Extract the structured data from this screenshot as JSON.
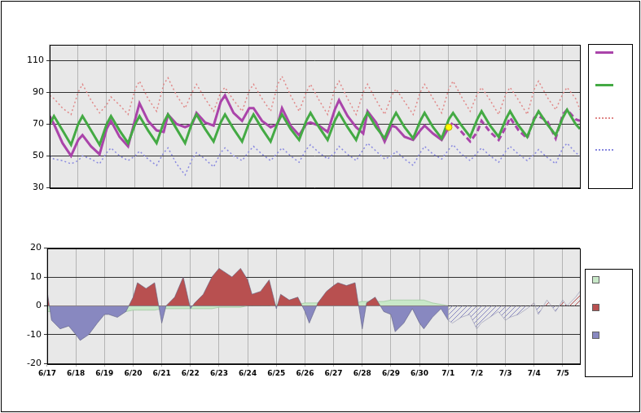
{
  "chart_data": [
    {
      "type": "line",
      "x": [
        0,
        0.15,
        0.45,
        0.75,
        1,
        1.15,
        1.45,
        1.75,
        2,
        2.15,
        2.45,
        2.75,
        3,
        3.15,
        3.45,
        3.75,
        4,
        4.15,
        4.45,
        4.75,
        5,
        5.15,
        5.45,
        5.75,
        6,
        6.15,
        6.45,
        6.75,
        7,
        7.15,
        7.45,
        7.75,
        8,
        8.15,
        8.45,
        8.75,
        9,
        9.15,
        9.45,
        9.75,
        10,
        10.15,
        10.45,
        10.75,
        11,
        11.15,
        11.45,
        11.75,
        12,
        12.15,
        12.45,
        12.75,
        13,
        13.15,
        13.45,
        13.75,
        14,
        14.15,
        14.45,
        14.75,
        15,
        15.15,
        15.45,
        15.75,
        16,
        16.15,
        16.45,
        16.75,
        17,
        17.15,
        17.45,
        17.75,
        18,
        18.15,
        18.45,
        18.6
      ],
      "xlim": [
        0,
        18.6
      ],
      "xticks": [
        {
          "value": 0,
          "label": "6/17"
        },
        {
          "value": 1,
          "label": "6/18"
        },
        {
          "value": 2,
          "label": "6/19"
        },
        {
          "value": 3,
          "label": "6/20"
        },
        {
          "value": 4,
          "label": "6/21"
        },
        {
          "value": 5,
          "label": "6/22"
        },
        {
          "value": 6,
          "label": "6/23"
        },
        {
          "value": 7,
          "label": "6/24"
        },
        {
          "value": 8,
          "label": "6/25"
        },
        {
          "value": 9,
          "label": "6/26"
        },
        {
          "value": 10,
          "label": "6/27"
        },
        {
          "value": 11,
          "label": "6/28"
        },
        {
          "value": 12,
          "label": "6/29"
        },
        {
          "value": 13,
          "label": "6/30"
        },
        {
          "value": 14,
          "label": "7/1"
        },
        {
          "value": 15,
          "label": "7/2"
        },
        {
          "value": 16,
          "label": "7/3"
        },
        {
          "value": 17,
          "label": "7/4"
        },
        {
          "value": 18,
          "label": "7/5"
        }
      ],
      "ylim": [
        30,
        120
      ],
      "yticks": [
        30,
        50,
        70,
        90,
        110
      ],
      "grid": true,
      "legend": "right",
      "tick_labels": "y",
      "series": [
        {
          "color": "#aa44aa",
          "line_style": "solid",
          "values": [
            75,
            70,
            58,
            50,
            60,
            63,
            56,
            51,
            67,
            72,
            62,
            56,
            73,
            83,
            72,
            66,
            65,
            76,
            70,
            68,
            70,
            77,
            71,
            69,
            84,
            88,
            77,
            72,
            80,
            80,
            72,
            68,
            70,
            80,
            69,
            63,
            70,
            71,
            69,
            65,
            79,
            85,
            75,
            68,
            64,
            78,
            71,
            59,
            69,
            68,
            62,
            60,
            66,
            69,
            64,
            60,
            68,
            null,
            null,
            null,
            null,
            null,
            null,
            null,
            null,
            null,
            null,
            null,
            null,
            null,
            null,
            null,
            null,
            null,
            null,
            null
          ]
        },
        {
          "color": "#aa44aa",
          "line_style": "dashed",
          "values": [
            null,
            null,
            null,
            null,
            null,
            null,
            null,
            null,
            null,
            null,
            null,
            null,
            null,
            null,
            null,
            null,
            null,
            null,
            null,
            null,
            null,
            null,
            null,
            null,
            null,
            null,
            null,
            null,
            null,
            null,
            null,
            null,
            null,
            null,
            null,
            null,
            null,
            null,
            null,
            null,
            null,
            null,
            null,
            null,
            null,
            null,
            null,
            null,
            null,
            null,
            null,
            null,
            null,
            null,
            null,
            null,
            68,
            71,
            65,
            59,
            65,
            72,
            65,
            60,
            68,
            74,
            66,
            61,
            74,
            75,
            72,
            61,
            76,
            79,
            73,
            72
          ]
        },
        {
          "color": "#44aa44",
          "line_style": "solid",
          "values": [
            70,
            75,
            66,
            57,
            70,
            75,
            66,
            57,
            70,
            75,
            66,
            58,
            70,
            75,
            66,
            58,
            71,
            76,
            67,
            58,
            71,
            76,
            67,
            59,
            71,
            76,
            67,
            59,
            71,
            76,
            67,
            59,
            71,
            76,
            67,
            60,
            72,
            77,
            68,
            60,
            72,
            77,
            68,
            60,
            72,
            77,
            68,
            61,
            72,
            77,
            68,
            61,
            72,
            77,
            68,
            61,
            73,
            77,
            69,
            62,
            73,
            78,
            69,
            62,
            73,
            78,
            69,
            62,
            73,
            78,
            70,
            63,
            74,
            79,
            70,
            67
          ]
        },
        {
          "color": "#e08888",
          "line_style": "dotted",
          "values": [
            88,
            86,
            80,
            76,
            90,
            95,
            85,
            77,
            82,
            87,
            82,
            76,
            92,
            97,
            86,
            78,
            95,
            99,
            88,
            80,
            90,
            95,
            86,
            78,
            90,
            93,
            85,
            78,
            91,
            95,
            86,
            78,
            95,
            100,
            88,
            78,
            90,
            95,
            85,
            76,
            92,
            97,
            86,
            76,
            90,
            95,
            85,
            76,
            88,
            92,
            84,
            76,
            90,
            95,
            86,
            77,
            92,
            97,
            87,
            78,
            89,
            93,
            85,
            76,
            89,
            93,
            85,
            76,
            92,
            97,
            87,
            79,
            89,
            93,
            86,
            79
          ]
        },
        {
          "color": "#8888e0",
          "line_style": "dotted",
          "values": [
            50,
            48,
            47,
            45,
            47,
            50,
            48,
            45,
            52,
            55,
            50,
            47,
            50,
            53,
            48,
            44,
            52,
            55,
            45,
            38,
            48,
            52,
            48,
            43,
            52,
            55,
            50,
            47,
            53,
            56,
            51,
            47,
            52,
            55,
            50,
            46,
            54,
            57,
            52,
            48,
            52,
            56,
            51,
            47,
            54,
            58,
            53,
            48,
            50,
            53,
            48,
            44,
            52,
            56,
            51,
            48,
            54,
            57,
            51,
            47,
            52,
            55,
            50,
            46,
            53,
            56,
            51,
            47,
            51,
            54,
            49,
            45,
            55,
            58,
            52,
            50
          ]
        },
        {
          "color": "#ffff00",
          "type": "scatter",
          "marker": "circle",
          "values": [
            null,
            null,
            null,
            null,
            null,
            null,
            null,
            null,
            null,
            null,
            null,
            null,
            null,
            null,
            null,
            null,
            null,
            null,
            null,
            null,
            null,
            null,
            null,
            null,
            null,
            null,
            null,
            null,
            null,
            null,
            null,
            null,
            null,
            null,
            null,
            null,
            null,
            null,
            null,
            null,
            null,
            null,
            null,
            null,
            null,
            null,
            null,
            null,
            null,
            null,
            null,
            null,
            null,
            null,
            null,
            null,
            68,
            null,
            null,
            null,
            null,
            null,
            null,
            null,
            null,
            null,
            null,
            null,
            null,
            null,
            null,
            null,
            null,
            null,
            null,
            null
          ]
        }
      ]
    },
    {
      "type": "area",
      "x": [
        0,
        0.15,
        0.45,
        0.75,
        1,
        1.15,
        1.45,
        1.75,
        2,
        2.15,
        2.45,
        2.75,
        3,
        3.15,
        3.45,
        3.75,
        4,
        4.15,
        4.45,
        4.75,
        5,
        5.15,
        5.45,
        5.75,
        6,
        6.15,
        6.45,
        6.75,
        7,
        7.15,
        7.45,
        7.75,
        8,
        8.15,
        8.45,
        8.75,
        9,
        9.15,
        9.45,
        9.75,
        10,
        10.15,
        10.45,
        10.75,
        11,
        11.15,
        11.45,
        11.75,
        12,
        12.15,
        12.45,
        12.75,
        13,
        13.15,
        13.45,
        13.75,
        14,
        14.15,
        14.45,
        14.75,
        15,
        15.15,
        15.45,
        15.75,
        16,
        16.15,
        16.45,
        16.75,
        17,
        17.15,
        17.45,
        17.75,
        18,
        18.15,
        18.45,
        18.6
      ],
      "xlim": [
        0,
        18.6
      ],
      "xticks": [
        {
          "value": 0,
          "label": "6/17"
        },
        {
          "value": 1,
          "label": "6/18"
        },
        {
          "value": 2,
          "label": "6/19"
        },
        {
          "value": 3,
          "label": "6/20"
        },
        {
          "value": 4,
          "label": "6/21"
        },
        {
          "value": 5,
          "label": "6/22"
        },
        {
          "value": 6,
          "label": "6/23"
        },
        {
          "value": 7,
          "label": "6/24"
        },
        {
          "value": 8,
          "label": "6/25"
        },
        {
          "value": 9,
          "label": "6/26"
        },
        {
          "value": 10,
          "label": "6/27"
        },
        {
          "value": 11,
          "label": "6/28"
        },
        {
          "value": 12,
          "label": "6/29"
        },
        {
          "value": 13,
          "label": "6/30"
        },
        {
          "value": 14,
          "label": "7/1"
        },
        {
          "value": 15,
          "label": "7/2"
        },
        {
          "value": 16,
          "label": "7/3"
        },
        {
          "value": 17,
          "label": "7/4"
        },
        {
          "value": 18,
          "label": "7/5"
        }
      ],
      "ylim": [
        -20,
        20
      ],
      "yticks": [
        -20,
        -10,
        0,
        10,
        20
      ],
      "grid": true,
      "legend": "right",
      "series": [
        {
          "color": "#c8e8c8",
          "values": [
            -2,
            -2,
            -2,
            -2,
            -2,
            -2,
            -2,
            -2,
            -2,
            -2,
            -2,
            -2,
            -1.5,
            -1.5,
            -1.5,
            -1.5,
            -1,
            -1,
            -1,
            -1,
            -1,
            -1,
            -1,
            -1,
            -0.5,
            -0.5,
            -0.5,
            -0.5,
            0,
            0,
            0,
            0,
            0.5,
            0.5,
            0.5,
            0.5,
            1,
            1,
            1,
            1,
            1,
            1,
            1,
            1,
            1.5,
            1.5,
            1.5,
            1.5,
            2,
            2,
            2,
            2,
            2,
            2,
            1,
            0.5,
            0,
            null,
            null,
            null,
            null,
            null,
            null,
            null,
            null,
            null,
            null,
            null,
            null,
            null,
            null,
            null,
            null,
            null,
            null,
            null
          ]
        },
        {
          "colors": [
            "#b85050",
            "#8888c0"
          ],
          "line_style": "solid",
          "values": [
            5,
            -5,
            -8,
            -7,
            -10,
            -12,
            -10,
            -6,
            -3,
            -3,
            -4,
            -2,
            3,
            8,
            6,
            8,
            -6,
            0,
            3,
            10,
            -1,
            1,
            4,
            10,
            13,
            12,
            10,
            13,
            9,
            4,
            5,
            9,
            -1,
            4,
            2,
            3,
            -2,
            -6,
            1,
            5,
            7,
            8,
            7,
            8,
            -8,
            1,
            3,
            -2,
            -3,
            -9,
            -6,
            -1,
            -6,
            -8,
            -4,
            -1,
            -5,
            null,
            null,
            null,
            null,
            null,
            null,
            null,
            null,
            null,
            null,
            null,
            null,
            null,
            null,
            null,
            null,
            null,
            null,
            null
          ]
        },
        {
          "colors": [
            "#b85050",
            "#8888c0"
          ],
          "line_style": "hatched",
          "values": [
            null,
            null,
            null,
            null,
            null,
            null,
            null,
            null,
            null,
            null,
            null,
            null,
            null,
            null,
            null,
            null,
            null,
            null,
            null,
            null,
            null,
            null,
            null,
            null,
            null,
            null,
            null,
            null,
            null,
            null,
            null,
            null,
            null,
            null,
            null,
            null,
            null,
            null,
            null,
            null,
            null,
            null,
            null,
            null,
            null,
            null,
            null,
            null,
            null,
            null,
            null,
            null,
            null,
            null,
            null,
            null,
            -5,
            -6,
            -4,
            -3,
            -8,
            -6,
            -4,
            -2,
            -5,
            -4,
            -3,
            -1,
            1,
            -3,
            2,
            -2,
            2,
            0,
            3,
            5
          ]
        }
      ]
    }
  ]
}
